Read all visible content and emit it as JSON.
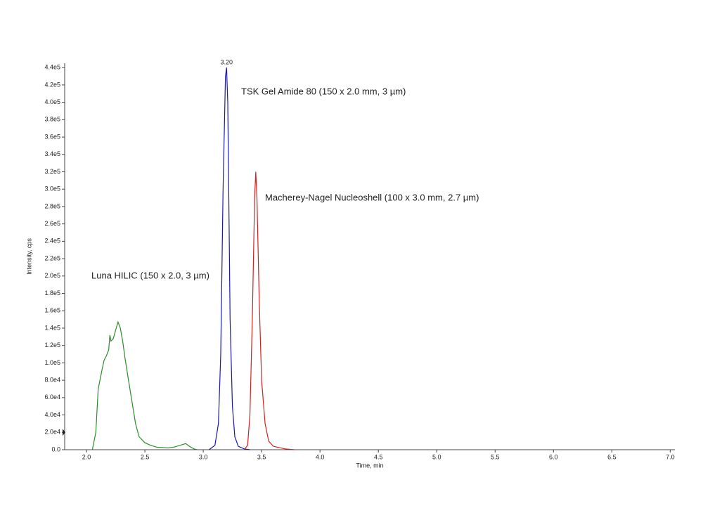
{
  "chart_data": {
    "type": "line",
    "x_label": "Time, min",
    "y_label": "Intensity, cps",
    "peak_label": "3.20",
    "xlim": [
      1.813,
      7.04
    ],
    "ylim": [
      0,
      445000
    ],
    "xticks": [
      {
        "value": 2,
        "label": "2.0"
      },
      {
        "value": 2.5,
        "label": "2.5"
      },
      {
        "value": 3,
        "label": "3.0"
      },
      {
        "value": 3.5,
        "label": "3.5"
      },
      {
        "value": 4,
        "label": "4.0"
      },
      {
        "value": 4.5,
        "label": "4.5"
      },
      {
        "value": 5,
        "label": "5.0"
      },
      {
        "value": 5.5,
        "label": "5.5"
      },
      {
        "value": 6,
        "label": "6.0"
      },
      {
        "value": 6.5,
        "label": "6.5"
      },
      {
        "value": 7,
        "label": "7.0"
      }
    ],
    "yticks": [
      {
        "value": 0,
        "label": "0.0"
      },
      {
        "value": 20000,
        "label": "2.0e4"
      },
      {
        "value": 40000,
        "label": "4.0e4"
      },
      {
        "value": 60000,
        "label": "6.0e4"
      },
      {
        "value": 80000,
        "label": "8.0e4"
      },
      {
        "value": 100000,
        "label": "1.0e5"
      },
      {
        "value": 120000,
        "label": "1.2e5"
      },
      {
        "value": 140000,
        "label": "1.4e5"
      },
      {
        "value": 160000,
        "label": "1.6e5"
      },
      {
        "value": 180000,
        "label": "1.8e5"
      },
      {
        "value": 200000,
        "label": "2.0e5"
      },
      {
        "value": 220000,
        "label": "2.2e5"
      },
      {
        "value": 240000,
        "label": "2.4e5"
      },
      {
        "value": 260000,
        "label": "2.6e5"
      },
      {
        "value": 280000,
        "label": "2.8e5"
      },
      {
        "value": 300000,
        "label": "3.0e5"
      },
      {
        "value": 320000,
        "label": "3.2e5"
      },
      {
        "value": 340000,
        "label": "3.4e5"
      },
      {
        "value": 360000,
        "label": "3.6e5"
      },
      {
        "value": 380000,
        "label": "3.8e5"
      },
      {
        "value": 400000,
        "label": "4.0e5"
      },
      {
        "value": 420000,
        "label": "4.2e5"
      },
      {
        "value": 440000,
        "label": "4.4e5"
      }
    ],
    "series": [
      {
        "name": "Luna HILIC (150 x 2.0, 3 µm)",
        "color": "#2e8b2e",
        "x": [
          2.05,
          2.08,
          2.1,
          2.13,
          2.15,
          2.17,
          2.19,
          2.2,
          2.21,
          2.23,
          2.25,
          2.27,
          2.29,
          2.31,
          2.33,
          2.36,
          2.39,
          2.42,
          2.45,
          2.5,
          2.55,
          2.6,
          2.7,
          2.75,
          2.8,
          2.85,
          2.88,
          2.92,
          2.95
        ],
        "values": [
          0,
          20000,
          70000,
          90000,
          103000,
          108000,
          115000,
          132000,
          125000,
          128000,
          138000,
          147000,
          140000,
          125000,
          105000,
          80000,
          55000,
          30000,
          15000,
          8000,
          5000,
          3000,
          2000,
          3000,
          5000,
          7000,
          4000,
          1000,
          0
        ]
      },
      {
        "name": "TSK Gel Amide 80 (150 x 2.0 mm, 3 µm)",
        "color": "#1a1aa8",
        "x": [
          3.05,
          3.1,
          3.13,
          3.15,
          3.17,
          3.19,
          3.2,
          3.21,
          3.22,
          3.23,
          3.25,
          3.27,
          3.3,
          3.35,
          3.4
        ],
        "values": [
          0,
          5000,
          30000,
          110000,
          300000,
          430000,
          440000,
          400000,
          280000,
          150000,
          50000,
          15000,
          4000,
          1000,
          0
        ]
      },
      {
        "name": "Macherey-Nagel Nucleoshell (100 x 3.0 mm, 2.7 µm)",
        "color": "#cc2222",
        "x": [
          3.35,
          3.38,
          3.4,
          3.42,
          3.44,
          3.45,
          3.46,
          3.48,
          3.5,
          3.53,
          3.56,
          3.6,
          3.7,
          3.78
        ],
        "values": [
          0,
          5000,
          40000,
          150000,
          290000,
          320000,
          290000,
          170000,
          80000,
          30000,
          10000,
          4000,
          1000,
          0
        ]
      }
    ]
  }
}
